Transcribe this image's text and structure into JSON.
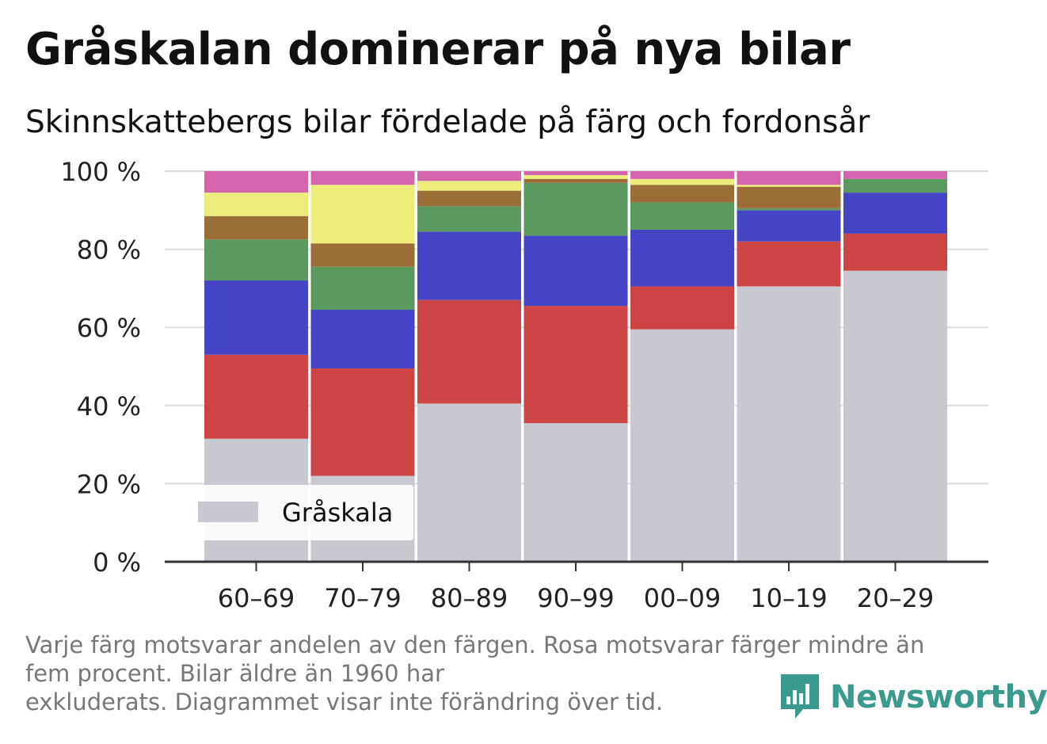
{
  "title": "Gråskalan dominerar på nya bilar",
  "subtitle": "Skinnskattebergs bilar fördelade på färg och fordonsår",
  "chart_data": {
    "type": "bar",
    "stacked": true,
    "categories": [
      "60–69",
      "70–79",
      "80–89",
      "90–99",
      "00–09",
      "10–19",
      "20–29"
    ],
    "ylim": [
      0,
      100
    ],
    "yticks": [
      {
        "value": 0,
        "label": "0 %"
      },
      {
        "value": 20,
        "label": "20 %"
      },
      {
        "value": 40,
        "label": "40 %"
      },
      {
        "value": 60,
        "label": "60 %"
      },
      {
        "value": 80,
        "label": "80 %"
      },
      {
        "value": 100,
        "label": "100 %"
      }
    ],
    "grid": true,
    "legend_position": "bottom-left",
    "series": [
      {
        "name": "Gråskala",
        "color": "#c8c8d0",
        "values": [
          31.5,
          22,
          40.5,
          35.5,
          59.5,
          70.5,
          74.5
        ]
      },
      {
        "color": "#cc4444",
        "values": [
          21.5,
          27.5,
          26.5,
          30,
          11,
          11.5,
          9.5
        ]
      },
      {
        "color": "#4444c4",
        "values": [
          19,
          15,
          17.5,
          18,
          14.5,
          8,
          10.5
        ]
      },
      {
        "color": "#5a9a60",
        "values": [
          10.5,
          11,
          6.5,
          13.5,
          7,
          0.5,
          3.5
        ]
      },
      {
        "color": "#9a6e36",
        "values": [
          6,
          6,
          4,
          1,
          4.5,
          5.5,
          0
        ]
      },
      {
        "color": "#ecec7a",
        "values": [
          6,
          15,
          2.5,
          1,
          1.5,
          0.5,
          0
        ]
      },
      {
        "color": "#d465ac",
        "values": [
          5.5,
          3.5,
          2.5,
          1,
          2,
          3.5,
          2
        ]
      }
    ]
  },
  "footnote": {
    "lines": [
      "Varje färg motsvarar andelen av den färgen. Rosa motsvarar färger mindre än",
      "fem procent. Bilar äldre än 1960 har",
      "exkluderats. Diagrammet visar inte förändring över tid."
    ]
  },
  "logo": {
    "text": "Newsworthy",
    "icon": "newsworthy-bar-chart-icon",
    "color": "#3a9a8e"
  }
}
